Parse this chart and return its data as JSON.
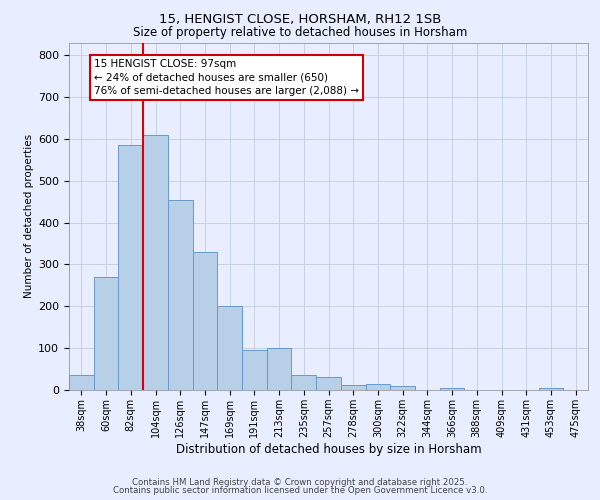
{
  "title1": "15, HENGIST CLOSE, HORSHAM, RH12 1SB",
  "title2": "Size of property relative to detached houses in Horsham",
  "xlabel": "Distribution of detached houses by size in Horsham",
  "ylabel": "Number of detached properties",
  "bar_labels": [
    "38sqm",
    "60sqm",
    "82sqm",
    "104sqm",
    "126sqm",
    "147sqm",
    "169sqm",
    "191sqm",
    "213sqm",
    "235sqm",
    "257sqm",
    "278sqm",
    "300sqm",
    "322sqm",
    "344sqm",
    "366sqm",
    "388sqm",
    "409sqm",
    "431sqm",
    "453sqm",
    "475sqm"
  ],
  "bar_values": [
    35,
    270,
    585,
    610,
    455,
    330,
    200,
    95,
    100,
    35,
    30,
    13,
    15,
    10,
    0,
    4,
    0,
    0,
    0,
    5,
    0
  ],
  "bar_color": "#b8cfe8",
  "bar_edge_color": "#6699cc",
  "red_line_index": 2.5,
  "annotation_text": "15 HENGIST CLOSE: 97sqm\n← 24% of detached houses are smaller (650)\n76% of semi-detached houses are larger (2,088) →",
  "annotation_box_color": "#ffffff",
  "annotation_box_edge": "#cc0000",
  "property_line_color": "#dd0000",
  "ylim": [
    0,
    830
  ],
  "yticks": [
    0,
    100,
    200,
    300,
    400,
    500,
    600,
    700,
    800
  ],
  "footer1": "Contains HM Land Registry data © Crown copyright and database right 2025.",
  "footer2": "Contains public sector information licensed under the Open Government Licence v3.0.",
  "bg_color": "#e8eeff",
  "grid_color": "#c0ccdd"
}
